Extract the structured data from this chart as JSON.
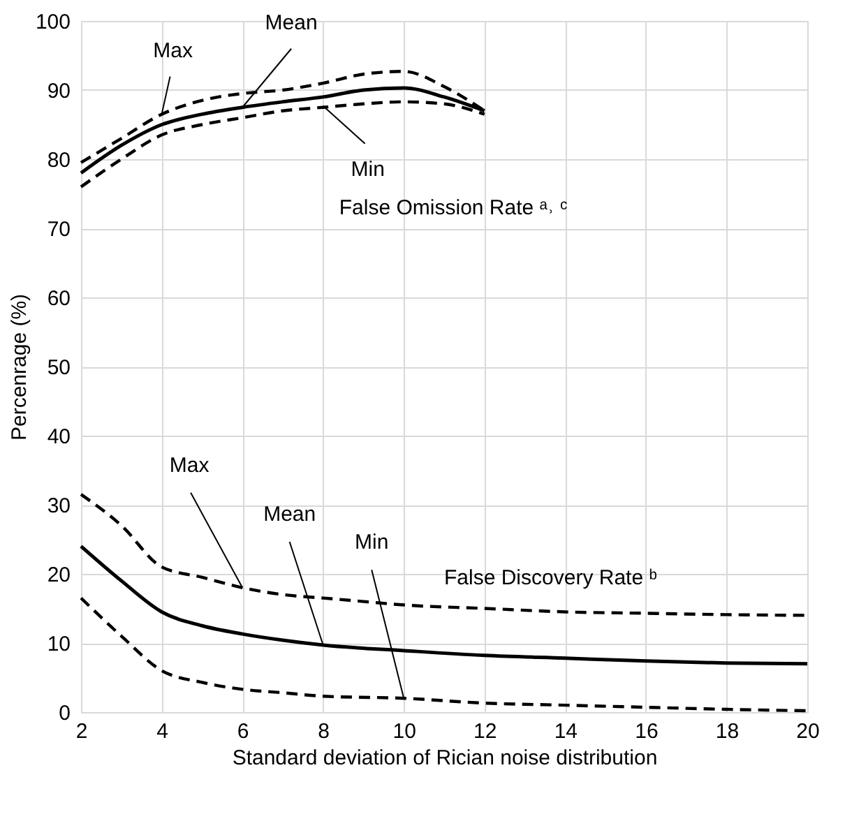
{
  "chart_data": {
    "type": "line",
    "xlabel": "Standard deviation of Rician noise distribution",
    "ylabel": "Percenrage (%)",
    "xlim": [
      2,
      20
    ],
    "xticks": [
      2,
      4,
      6,
      8,
      10,
      12,
      14,
      16,
      18,
      20
    ],
    "ylim": [
      0,
      100
    ],
    "yticks": [
      0,
      10,
      20,
      30,
      40,
      50,
      60,
      70,
      80,
      90,
      100
    ],
    "grid": true,
    "marker": "none",
    "series": [
      {
        "color": "#000000",
        "line_style": "dashed",
        "x": [
          2,
          3,
          4,
          5,
          6,
          7,
          8,
          9,
          10,
          11,
          12
        ],
        "values": [
          79.5,
          83,
          86.5,
          88.5,
          89.5,
          90,
          91,
          92.3,
          92.7,
          90.5,
          87
        ]
      },
      {
        "color": "#000000",
        "line_style": "solid",
        "x": [
          2,
          3,
          4,
          5,
          6,
          7,
          8,
          9,
          10,
          11,
          12
        ],
        "values": [
          78,
          82,
          85,
          86.5,
          87.5,
          88.3,
          89,
          90,
          90.3,
          89,
          87
        ]
      },
      {
        "color": "#000000",
        "line_style": "dashed",
        "x": [
          2,
          3,
          4,
          5,
          6,
          7,
          8,
          9,
          10,
          11,
          12
        ],
        "values": [
          76,
          80,
          83.5,
          85,
          86,
          87,
          87.5,
          88,
          88.3,
          88,
          86.5
        ]
      },
      {
        "color": "#000000",
        "line_style": "dashed",
        "x": [
          2,
          3,
          4,
          5,
          6,
          7,
          8,
          9,
          10,
          12,
          14,
          16,
          18,
          20
        ],
        "values": [
          31.5,
          27,
          21,
          19.5,
          18,
          17,
          16.5,
          16,
          15.5,
          15,
          14.5,
          14.3,
          14.1,
          14
        ]
      },
      {
        "color": "#000000",
        "line_style": "solid",
        "x": [
          2,
          3,
          4,
          5,
          6,
          7,
          8,
          10,
          12,
          14,
          16,
          18,
          20
        ],
        "values": [
          24,
          19,
          14.5,
          12.5,
          11.3,
          10.4,
          9.7,
          8.9,
          8.2,
          7.8,
          7.4,
          7.1,
          7
        ]
      },
      {
        "color": "#000000",
        "line_style": "dashed",
        "x": [
          2,
          3,
          4,
          5,
          6,
          7,
          8,
          10,
          12,
          14,
          16,
          18,
          20
        ],
        "values": [
          16.5,
          11,
          6,
          4.3,
          3.3,
          2.8,
          2.3,
          2,
          1.3,
          1,
          0.7,
          0.4,
          0.2
        ]
      }
    ],
    "annotations": [
      {
        "text": "Max",
        "x": 4,
        "y": 86.5
      },
      {
        "text": "Mean",
        "x": 6,
        "y": 87.5
      },
      {
        "text": "Min",
        "x": 8,
        "y": 87.7
      },
      {
        "text": "Max",
        "x": 6,
        "y": 18
      },
      {
        "text": "Mean",
        "x": 8,
        "y": 9.7
      },
      {
        "text": "Min",
        "x": 10,
        "y": 2
      },
      "False Omission Rate ᵃ˒ ᶜ",
      "False Discovery Rate ᵇ"
    ]
  }
}
